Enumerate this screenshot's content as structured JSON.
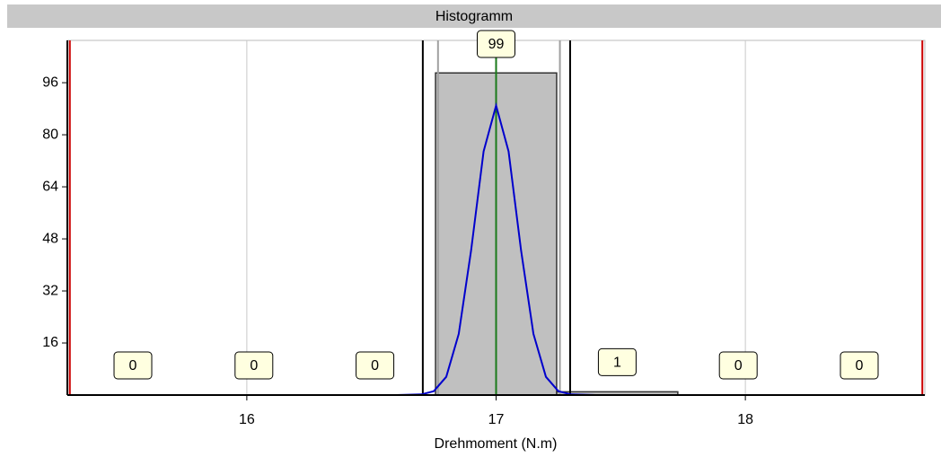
{
  "chart_data": {
    "type": "histogram",
    "title": "Histogramm",
    "x_label": "Drehmoment (N.m)",
    "bins": [
      15.3,
      15.786,
      16.271,
      16.757,
      17.243,
      17.729,
      18.214,
      18.7
    ],
    "counts": [
      0,
      0,
      0,
      99,
      1,
      0,
      0
    ],
    "color": "#c0c0c0",
    "xlim": [
      15.28,
      18.72
    ],
    "xticks": [
      16,
      17,
      18
    ],
    "ylim": [
      0,
      109
    ],
    "yticks": [
      16,
      32,
      48,
      64,
      80,
      96
    ],
    "grid": true,
    "curve": {
      "color": "#0000cc",
      "x": [
        15.3,
        16.6,
        16.7,
        16.75,
        16.8,
        16.85,
        16.9,
        16.95,
        17,
        17.05,
        17.1,
        17.15,
        17.2,
        17.25,
        17.3,
        17.4,
        18.7
      ],
      "values": [
        0,
        0,
        0.2,
        1.2,
        5.6,
        18.8,
        44.5,
        74.9,
        89,
        74.9,
        44.5,
        18.8,
        5.6,
        1.2,
        0.2,
        0,
        0
      ]
    },
    "reference_lines": [
      {
        "x": 15.29,
        "color": "#cc0000"
      },
      {
        "x": 18.71,
        "color": "#cc0000"
      },
      {
        "x": 16.706,
        "color": "#000000"
      },
      {
        "x": 17.297,
        "color": "#000000"
      },
      {
        "x": 16.767,
        "color": "#a0a0a0"
      },
      {
        "x": 17.256,
        "color": "#a0a0a0"
      },
      {
        "x": 17,
        "color": "#1a7a1a"
      }
    ]
  }
}
